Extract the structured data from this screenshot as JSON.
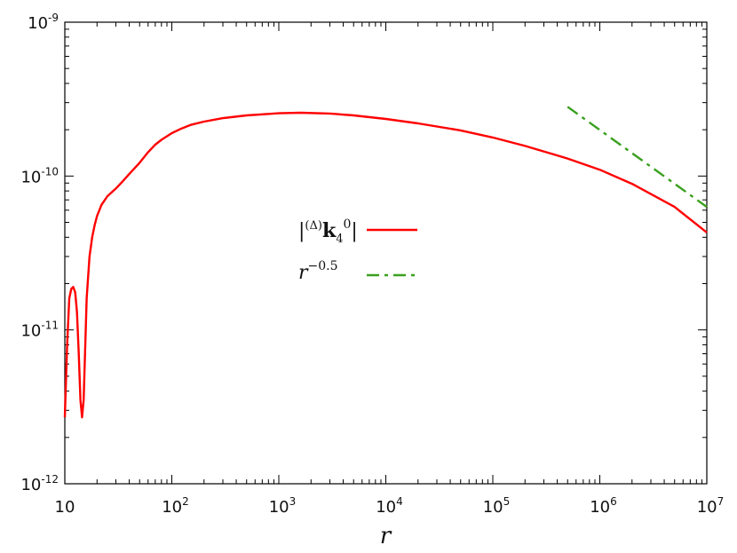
{
  "chart_data": {
    "type": "line",
    "xlabel": "r",
    "ylabel": "",
    "xscale": "log",
    "yscale": "log",
    "xlim": [
      10,
      10000000
    ],
    "ylim": [
      1e-12,
      1e-09
    ],
    "grid": false,
    "legend_position": "center",
    "x_ticks": [
      {
        "value": 10,
        "base": "10",
        "exp": ""
      },
      {
        "value": 100,
        "base": "10",
        "exp": "2"
      },
      {
        "value": 1000,
        "base": "10",
        "exp": "3"
      },
      {
        "value": 10000,
        "base": "10",
        "exp": "4"
      },
      {
        "value": 100000,
        "base": "10",
        "exp": "5"
      },
      {
        "value": 1000000,
        "base": "10",
        "exp": "6"
      },
      {
        "value": 10000000,
        "base": "10",
        "exp": "7"
      }
    ],
    "y_ticks": [
      {
        "value": 1e-12,
        "base": "10",
        "exp": "-12"
      },
      {
        "value": 1e-11,
        "base": "10",
        "exp": "-11"
      },
      {
        "value": 1e-10,
        "base": "10",
        "exp": "-10"
      },
      {
        "value": 1e-09,
        "base": "10",
        "exp": "-9"
      }
    ],
    "series": [
      {
        "label": "|(Δ)k₄⁰|",
        "color": "#ff0000",
        "style": "solid",
        "x": [
          10,
          10.5,
          11,
          11.5,
          12,
          12.5,
          13,
          13.5,
          14,
          14.5,
          15,
          16,
          17,
          18,
          19,
          20,
          22,
          25,
          30,
          35,
          40,
          50,
          60,
          70,
          80,
          100,
          120,
          150,
          200,
          300,
          500,
          1000,
          1600,
          3000,
          5000,
          10000,
          20000,
          50000,
          100000,
          200000,
          500000,
          1000000,
          2000000,
          5000000,
          10000000
        ],
        "y": [
          2.7e-12,
          8e-12,
          1.6e-11,
          1.85e-11,
          1.9e-11,
          1.75e-11,
          1.3e-11,
          7e-12,
          3.5e-12,
          2.7e-12,
          3.5e-12,
          1.6e-11,
          3e-11,
          4e-11,
          4.8e-11,
          5.5e-11,
          6.5e-11,
          7.4e-11,
          8.3e-11,
          9.3e-11,
          1.03e-10,
          1.22e-10,
          1.43e-10,
          1.6e-10,
          1.72e-10,
          1.9e-10,
          2.02e-10,
          2.15e-10,
          2.26e-10,
          2.38e-10,
          2.48e-10,
          2.56e-10,
          2.58e-10,
          2.55e-10,
          2.48e-10,
          2.35e-10,
          2.2e-10,
          1.98e-10,
          1.78e-10,
          1.57e-10,
          1.3e-10,
          1.1e-10,
          8.9e-11,
          6.3e-11,
          4.3e-11
        ]
      },
      {
        "label": "r^-0.5",
        "color": "#3aa01f",
        "style": "dash-dot",
        "x": [
          500000,
          10000000
        ],
        "y": [
          2.82e-10,
          6.3e-11
        ]
      }
    ]
  }
}
